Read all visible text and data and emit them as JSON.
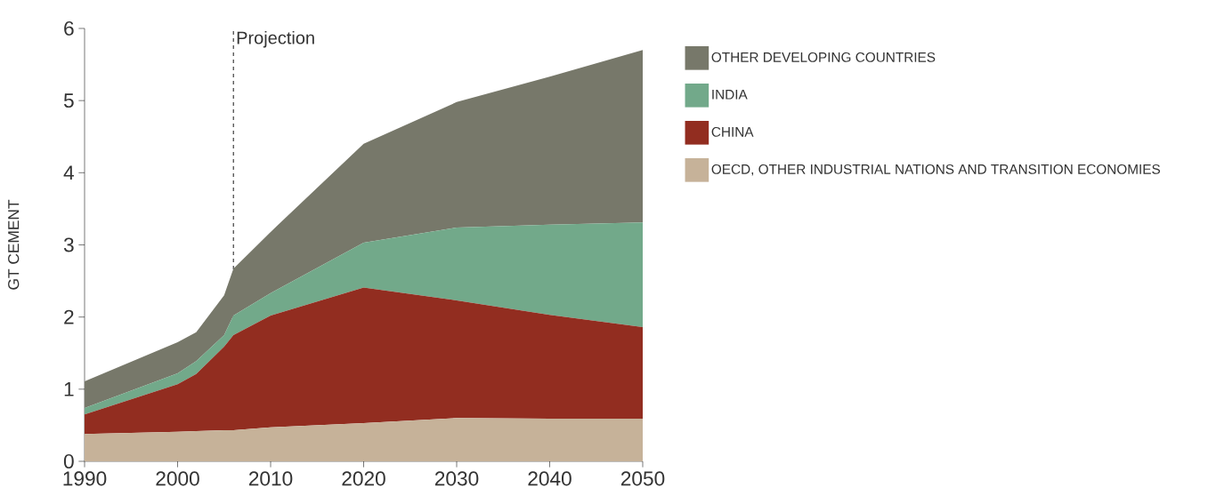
{
  "chart_data": {
    "type": "area",
    "stacked": true,
    "ylabel": "GT CEMENT",
    "x": [
      1990,
      2000,
      2002,
      2005,
      2006,
      2010,
      2020,
      2030,
      2040,
      2050
    ],
    "series": [
      {
        "name": "OECD, OTHER INDUSTRIAL NATIONS AND TRANSITION ECONOMIES",
        "color": "#c6b299",
        "values": [
          0.38,
          0.41,
          0.42,
          0.43,
          0.43,
          0.47,
          0.53,
          0.6,
          0.59,
          0.59
        ]
      },
      {
        "name": "CHINA",
        "color": "#922d20",
        "values": [
          0.27,
          0.66,
          0.79,
          1.16,
          1.32,
          1.55,
          1.88,
          1.63,
          1.44,
          1.27
        ]
      },
      {
        "name": "INDIA",
        "color": "#72a98a",
        "values": [
          0.09,
          0.15,
          0.18,
          0.16,
          0.27,
          0.31,
          0.62,
          1.01,
          1.25,
          1.45
        ]
      },
      {
        "name": "OTHER DEVELOPING COUNTRIES",
        "color": "#77786a",
        "values": [
          0.37,
          0.43,
          0.4,
          0.55,
          0.65,
          0.85,
          1.37,
          1.74,
          2.05,
          2.39
        ]
      }
    ],
    "xlim": [
      1990,
      2050
    ],
    "xticks": [
      1990,
      2000,
      2010,
      2020,
      2030,
      2040,
      2050
    ],
    "ylim": [
      0,
      6
    ],
    "yticks": [
      0,
      1,
      2,
      3,
      4,
      5,
      6
    ],
    "ref_lines": [
      {
        "axis": "x",
        "value": 2006,
        "label": "Projection",
        "line_style": "dashed"
      }
    ],
    "legend": "right",
    "marker": "none"
  }
}
